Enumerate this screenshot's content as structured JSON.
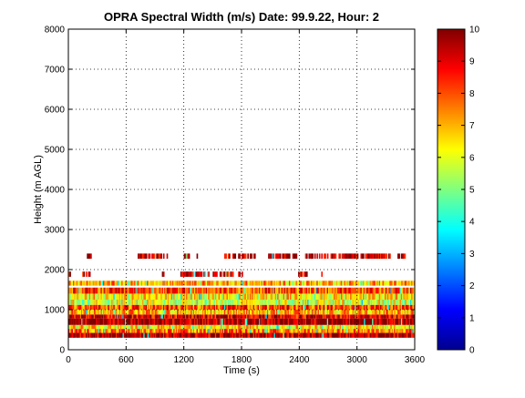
{
  "chart_data": {
    "type": "heatmap",
    "title": "OPRA Spectral Width (m/s)  Date: 99.9.22, Hour: 2",
    "xlabel": "Time (s)",
    "ylabel": "Height (m AGL)",
    "xlim": [
      0,
      3600
    ],
    "ylim": [
      0,
      8000
    ],
    "x_ticks": [
      "0",
      "600",
      "1200",
      "1800",
      "2400",
      "3000",
      "3600"
    ],
    "y_ticks": [
      "0",
      "1000",
      "2000",
      "3000",
      "4000",
      "5000",
      "6000",
      "7000",
      "8000"
    ],
    "grid": true,
    "colormap": "jet",
    "colorbar": {
      "range": [
        0,
        10
      ],
      "ticks": [
        "0",
        "1",
        "2",
        "3",
        "4",
        "5",
        "6",
        "7",
        "8",
        "9",
        "10"
      ],
      "position": "right"
    },
    "layers": [
      {
        "height_range": [
          300,
          420
        ],
        "time_range": [
          0,
          3600
        ],
        "typical_value": 9.5
      },
      {
        "height_range": [
          420,
          520
        ],
        "time_range": [
          0,
          3600
        ],
        "typical_value": 7.5
      },
      {
        "height_range": [
          520,
          620
        ],
        "time_range": [
          0,
          3600
        ],
        "typical_value": 6.5
      },
      {
        "height_range": [
          620,
          780
        ],
        "time_range": [
          0,
          3600
        ],
        "typical_value": 9.7
      },
      {
        "height_range": [
          780,
          880
        ],
        "time_range": [
          0,
          3600
        ],
        "typical_value": 9.0
      },
      {
        "height_range": [
          880,
          1000
        ],
        "time_range": [
          0,
          3600
        ],
        "typical_value": 7.0
      },
      {
        "height_range": [
          1000,
          1120
        ],
        "time_range": [
          0,
          3600
        ],
        "typical_value": 8.0
      },
      {
        "height_range": [
          1120,
          1250
        ],
        "time_range": [
          0,
          3600
        ],
        "typical_value": 6.0
      },
      {
        "height_range": [
          1250,
          1400
        ],
        "time_range": [
          0,
          3600
        ],
        "typical_value": 6.5
      },
      {
        "height_range": [
          1400,
          1550
        ],
        "time_range": [
          0,
          3600
        ],
        "typical_value": 8.0
      },
      {
        "height_range": [
          1600,
          1720
        ],
        "time_range": [
          0,
          3600
        ],
        "typical_value": 7.0
      },
      {
        "height_range": [
          1820,
          1950
        ],
        "time_range": [
          0,
          3600
        ],
        "typical_value": 9.5
      },
      {
        "height_range": [
          2270,
          2400
        ],
        "time_range": [
          0,
          3600
        ],
        "typical_value": 9.5
      }
    ]
  }
}
